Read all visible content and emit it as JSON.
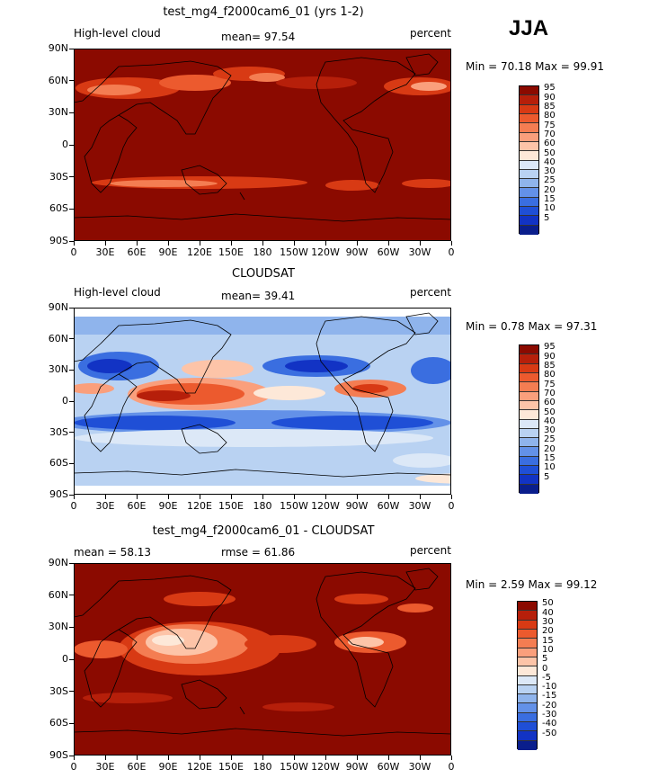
{
  "season": "JJA",
  "chart_data": [
    {
      "type": "heatmap",
      "title": "test_mg4_f2000cam6_01 (yrs 1-2)",
      "left_label": "High-level cloud",
      "stat_text": "mean=  97.54",
      "units": "percent",
      "minmax_text": "Min =  70.18 Max =  99.91",
      "mean": 97.54,
      "min": 70.18,
      "max": 99.91,
      "x_ticks": [
        "0",
        "30E",
        "60E",
        "90E",
        "120E",
        "150E",
        "180",
        "150W",
        "120W",
        "90W",
        "60W",
        "30W",
        "0"
      ],
      "y_ticks": [
        "90N",
        "60N",
        "30N",
        "0",
        "30S",
        "60S",
        "90S"
      ],
      "colorbar_levels": [
        "95",
        "90",
        "85",
        "80",
        "75",
        "70",
        "60",
        "50",
        "40",
        "30",
        "25",
        "20",
        "15",
        "10",
        "5"
      ],
      "colorbar_colors": [
        "#8b0a00",
        "#b61f0a",
        "#d83a14",
        "#ec5a2e",
        "#f47d52",
        "#fa9f7c",
        "#fdc4a8",
        "#fde8d8",
        "#dce8f7",
        "#b9d2f2",
        "#8fb4ec",
        "#6391e8",
        "#3a6ee0",
        "#1f4fd6",
        "#1233c4",
        "#0a1e8c"
      ]
    },
    {
      "type": "heatmap",
      "title": "CLOUDSAT",
      "left_label": "High-level cloud",
      "stat_text": "mean=  39.41",
      "units": "percent",
      "minmax_text": "Min =   0.78 Max =  97.31",
      "mean": 39.41,
      "min": 0.78,
      "max": 97.31,
      "x_ticks": [
        "0",
        "30E",
        "60E",
        "90E",
        "120E",
        "150E",
        "180",
        "150W",
        "120W",
        "90W",
        "60W",
        "30W",
        "0"
      ],
      "y_ticks": [
        "90N",
        "60N",
        "30N",
        "0",
        "30S",
        "60S",
        "90S"
      ],
      "colorbar_levels": [
        "95",
        "90",
        "85",
        "80",
        "75",
        "70",
        "60",
        "50",
        "40",
        "30",
        "25",
        "20",
        "15",
        "10",
        "5"
      ],
      "colorbar_colors": [
        "#8b0a00",
        "#b61f0a",
        "#d83a14",
        "#ec5a2e",
        "#f47d52",
        "#fa9f7c",
        "#fdc4a8",
        "#fde8d8",
        "#dce8f7",
        "#b9d2f2",
        "#8fb4ec",
        "#6391e8",
        "#3a6ee0",
        "#1f4fd6",
        "#1233c4",
        "#0a1e8c"
      ]
    },
    {
      "type": "heatmap",
      "title": "test_mg4_f2000cam6_01 - CLOUDSAT",
      "left_label": "mean =   58.13",
      "stat_text": "rmse =   61.86",
      "units": "percent",
      "minmax_text": "Min =   2.59 Max =  99.12",
      "mean": 58.13,
      "rmse": 61.86,
      "min": 2.59,
      "max": 99.12,
      "x_ticks": [
        "0",
        "30E",
        "60E",
        "90E",
        "120E",
        "150E",
        "180",
        "150W",
        "120W",
        "90W",
        "60W",
        "30W",
        "0"
      ],
      "y_ticks": [
        "90N",
        "60N",
        "30N",
        "0",
        "30S",
        "60S",
        "90S"
      ],
      "colorbar_levels": [
        "50",
        "40",
        "30",
        "20",
        "15",
        "10",
        "5",
        "0",
        "-5",
        "-10",
        "-15",
        "-20",
        "-30",
        "-40",
        "-50"
      ],
      "colorbar_colors": [
        "#8b0a00",
        "#b61f0a",
        "#d83a14",
        "#ec5a2e",
        "#f47d52",
        "#fa9f7c",
        "#fdc4a8",
        "#fde8d8",
        "#dce8f7",
        "#b9d2f2",
        "#8fb4ec",
        "#6391e8",
        "#3a6ee0",
        "#1f4fd6",
        "#1233c4",
        "#0a1e8c"
      ]
    }
  ]
}
